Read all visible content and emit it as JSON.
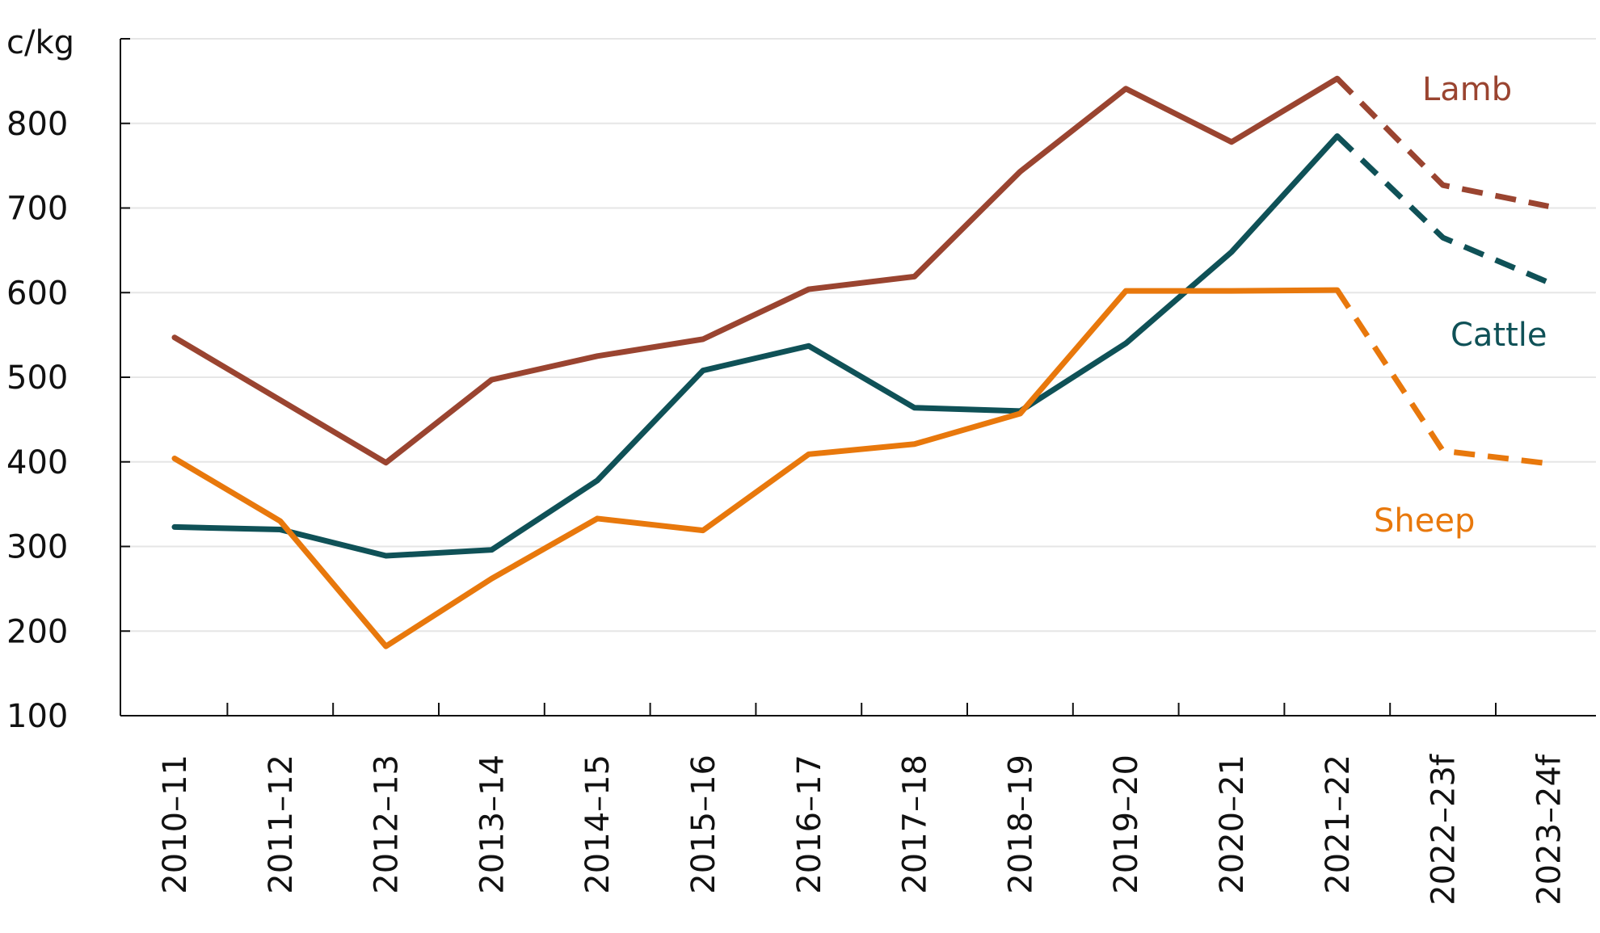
{
  "chart_data": {
    "type": "line",
    "ylabel": "c/kg",
    "ylim": [
      100,
      900
    ],
    "yticks": [
      100,
      200,
      300,
      400,
      500,
      600,
      700,
      800
    ],
    "grid": true,
    "categories": [
      "2010–11",
      "2011–12",
      "2012–13",
      "2013–14",
      "2014–15",
      "2015–16",
      "2016–17",
      "2017–18",
      "2018–19",
      "2019–20",
      "2020–21",
      "2021–22",
      "2022–23f",
      "2023–24f"
    ],
    "forecast_from_index": 11,
    "series": [
      {
        "name": "Lamb",
        "color": "#9a4430",
        "values": [
          547,
          473,
          399,
          497,
          525,
          545,
          604,
          619,
          743,
          841,
          778,
          853,
          727,
          702
        ]
      },
      {
        "name": "Cattle",
        "color": "#0f5157",
        "values": [
          323,
          320,
          289,
          296,
          378,
          508,
          537,
          464,
          460,
          540,
          648,
          785,
          665,
          612
        ]
      },
      {
        "name": "Sheep",
        "color": "#e8780c",
        "values": [
          404,
          330,
          182,
          262,
          333,
          319,
          409,
          421,
          457,
          602,
          602,
          603,
          413,
          398
        ]
      }
    ]
  }
}
